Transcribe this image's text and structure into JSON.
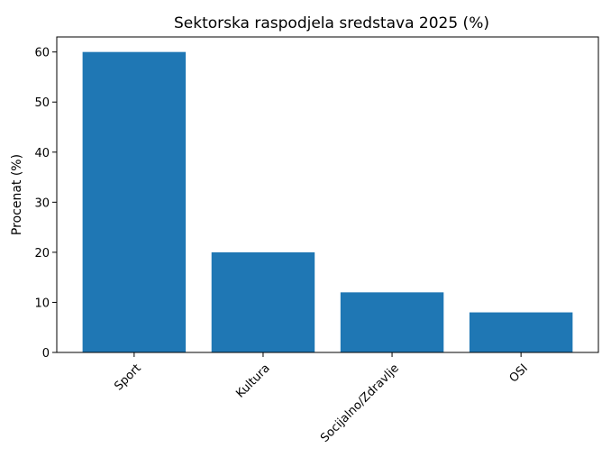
{
  "chart_data": {
    "type": "bar",
    "title": "Sektorska raspodjela sredstava 2025 (%)",
    "xlabel": "",
    "ylabel": "Procenat (%)",
    "categories": [
      "Sport",
      "Kultura",
      "Socijalno/Zdravlje",
      "OSI"
    ],
    "values": [
      60,
      20,
      12,
      8
    ],
    "ylim": [
      0,
      63
    ],
    "yticks": [
      0,
      10,
      20,
      30,
      40,
      50,
      60
    ],
    "bar_color": "#1f77b4",
    "grid": false,
    "legend": "none"
  }
}
